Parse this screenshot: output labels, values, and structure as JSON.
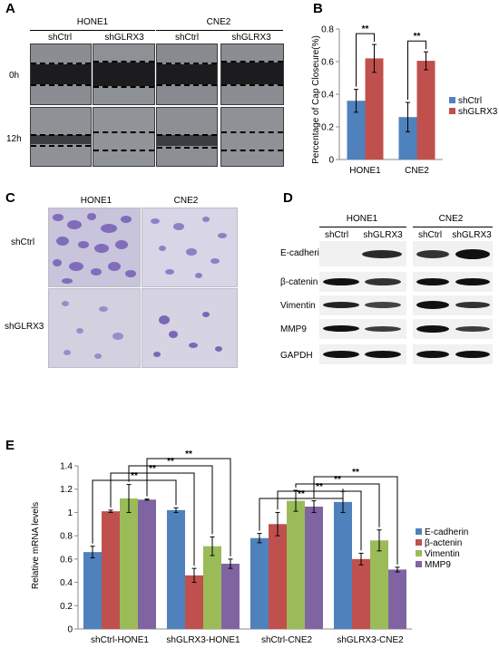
{
  "panels": {
    "a": "A",
    "b": "B",
    "c": "C",
    "d": "D",
    "e": "E"
  },
  "panel_a": {
    "cells": [
      "HONE1",
      "CNE2"
    ],
    "groups": [
      "shCtrl",
      "shGLRX3",
      "shCtrl",
      "shGLRX3"
    ],
    "times": [
      "0h",
      "12h"
    ]
  },
  "panel_c": {
    "cells": [
      "HONE1",
      "CNE2"
    ],
    "rows": [
      "shCtrl",
      "shGLRX3"
    ]
  },
  "panel_d": {
    "cells": [
      "HONE1",
      "CNE2"
    ],
    "groups": [
      "shCtrl",
      "shGLRX3",
      "shCtrl",
      "shGLRX3"
    ],
    "proteins": [
      "E-cadherin",
      "β-catenin",
      "Vimentin",
      "MMP9",
      "GAPDH"
    ]
  },
  "chart_data": [
    {
      "type": "bar",
      "ylabel": "Percentage of Cap Closeure(%)",
      "categories": [
        "HONE1",
        "CNE2"
      ],
      "ylim": [
        0,
        0.8
      ],
      "yticks": [
        "0",
        "0.2",
        "0.4",
        "0.6",
        "0.8"
      ],
      "legend_position": "right",
      "series": [
        {
          "name": "shCtrl",
          "color": "#4f81bd",
          "values": [
            0.36,
            0.26
          ],
          "errors": [
            0.07,
            0.09
          ]
        },
        {
          "name": "shGLRX3",
          "color": "#c0504d",
          "values": [
            0.62,
            0.605
          ],
          "errors": [
            0.085,
            0.055
          ]
        }
      ],
      "annotations": [
        "**",
        "**"
      ]
    },
    {
      "type": "bar",
      "ylabel": "Relative mRNA levels",
      "categories": [
        "shCtrl-HONE1",
        "shGLRX3-HONE1",
        "shCtrl-CNE2",
        "shGLRX3-CNE2"
      ],
      "ylim": [
        0,
        1.4
      ],
      "yticks": [
        "0",
        "0.2",
        "0.4",
        "0.6",
        "0.8",
        "1",
        "1.2",
        "1.4"
      ],
      "legend_position": "right",
      "series": [
        {
          "name": "E-cadherin",
          "color": "#4f81bd",
          "values": [
            0.66,
            1.02,
            0.78,
            1.09
          ],
          "errors": [
            0.05,
            0.02,
            0.04,
            0.09
          ]
        },
        {
          "name": "β-actenin",
          "color": "#c0504d",
          "values": [
            1.01,
            0.46,
            0.9,
            0.6
          ],
          "errors": [
            0.01,
            0.06,
            0.1,
            0.05
          ]
        },
        {
          "name": "Vimentin",
          "color": "#9bbb59",
          "values": [
            1.12,
            0.71,
            1.1,
            0.76
          ],
          "errors": [
            0.12,
            0.08,
            0.09,
            0.09
          ]
        },
        {
          "name": "MMP9",
          "color": "#8064a2",
          "values": [
            1.11,
            0.56,
            1.05,
            0.51
          ],
          "errors": [
            0.005,
            0.04,
            0.05,
            0.02
          ]
        }
      ],
      "annotations": [
        "**",
        "**",
        "**",
        "**",
        "**",
        "**",
        "**",
        "**"
      ]
    }
  ]
}
